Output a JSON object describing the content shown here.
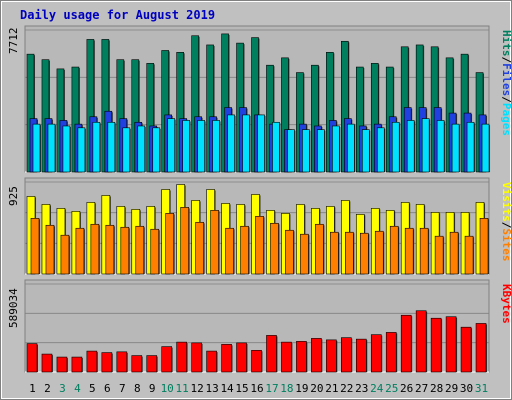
{
  "title": "Daily usage for August 2019",
  "colors": {
    "background": "#c0c0c0",
    "title": "#0000c0",
    "hits": "#007f5f",
    "files": "#2040e0",
    "pages": "#00e0ff",
    "visits": "#ffff00",
    "sites": "#ff8000",
    "kbytes": "#ff0000",
    "weekend_label": "#007f5f",
    "weekday_label": "#000000"
  },
  "chart_data": [
    {
      "type": "bar",
      "panel": "hits-files-pages",
      "ymax_label": "7712",
      "ymax": 7712,
      "axis_labels": [
        {
          "text": "Hits",
          "color_key": "hits"
        },
        {
          "text": "/",
          "color_key": "weekday_label"
        },
        {
          "text": "Files",
          "color_key": "files"
        },
        {
          "text": "/",
          "color_key": "weekday_label"
        },
        {
          "text": "Pages",
          "color_key": "pages"
        }
      ],
      "series": [
        {
          "name": "Hits",
          "color_key": "hits",
          "values": [
            6400,
            6100,
            5600,
            5700,
            7200,
            7200,
            6100,
            6100,
            5900,
            6600,
            6500,
            7400,
            6900,
            7500,
            7000,
            7300,
            5800,
            6200,
            5400,
            5800,
            6500,
            7100,
            5700,
            5900,
            5700,
            6800,
            6900,
            6800,
            6200,
            6400,
            5400
          ]
        },
        {
          "name": "Files",
          "color_key": "files",
          "values": [
            2900,
            2900,
            2800,
            2600,
            3000,
            3300,
            2900,
            2700,
            2500,
            3100,
            2900,
            3000,
            3000,
            3500,
            3500,
            3100,
            2600,
            2300,
            2600,
            2500,
            2800,
            2900,
            2500,
            2600,
            3000,
            3500,
            3500,
            3500,
            3200,
            3200,
            3100
          ]
        },
        {
          "name": "Pages",
          "color_key": "pages",
          "values": [
            2600,
            2600,
            2500,
            2400,
            2700,
            2700,
            2400,
            2500,
            2400,
            2900,
            2800,
            2800,
            2800,
            3100,
            3100,
            3100,
            2700,
            2300,
            2300,
            2300,
            2500,
            2600,
            2300,
            2400,
            2700,
            2800,
            2900,
            2800,
            2600,
            2700,
            2600
          ]
        }
      ]
    },
    {
      "type": "bar",
      "panel": "visits-sites",
      "ymax_label": "925",
      "ymax": 925,
      "axis_labels": [
        {
          "text": "Visits",
          "color_key": "visits"
        },
        {
          "text": "/",
          "color_key": "weekday_label"
        },
        {
          "text": "Sites",
          "color_key": "sites"
        }
      ],
      "series": [
        {
          "name": "Visits",
          "color_key": "visits",
          "values": [
            780,
            700,
            660,
            630,
            720,
            790,
            680,
            650,
            680,
            850,
            900,
            740,
            850,
            710,
            700,
            800,
            640,
            610,
            700,
            660,
            680,
            740,
            600,
            660,
            640,
            720,
            700,
            620,
            620,
            620,
            720
          ]
        },
        {
          "name": "Sites",
          "color_key": "sites",
          "values": [
            560,
            490,
            390,
            460,
            500,
            490,
            470,
            480,
            450,
            610,
            670,
            520,
            640,
            460,
            480,
            580,
            510,
            440,
            400,
            500,
            420,
            420,
            410,
            430,
            480,
            460,
            460,
            380,
            420,
            380,
            560
          ]
        }
      ]
    },
    {
      "type": "bar",
      "panel": "kbytes",
      "ymax_label": "589034",
      "ymax": 589034,
      "axis_labels": [
        {
          "text": "KBytes",
          "color_key": "kbytes"
        }
      ],
      "series": [
        {
          "name": "KBytes",
          "color_key": "kbytes",
          "values": [
            190000,
            120000,
            100000,
            100000,
            140000,
            130000,
            135000,
            110000,
            110000,
            170000,
            200000,
            195000,
            140000,
            185000,
            195000,
            145000,
            245000,
            200000,
            205000,
            225000,
            215000,
            230000,
            220000,
            250000,
            265000,
            380000,
            410000,
            360000,
            370000,
            300000,
            325000
          ]
        }
      ]
    },
    {
      "type": "axis",
      "categories": [
        "1",
        "2",
        "3",
        "4",
        "5",
        "6",
        "7",
        "8",
        "9",
        "10",
        "11",
        "12",
        "13",
        "14",
        "15",
        "16",
        "17",
        "18",
        "19",
        "20",
        "21",
        "22",
        "23",
        "24",
        "25",
        "26",
        "27",
        "28",
        "29",
        "30",
        "31"
      ],
      "weekend_days": [
        "3",
        "4",
        "10",
        "11",
        "17",
        "18",
        "24",
        "25",
        "31"
      ]
    }
  ]
}
